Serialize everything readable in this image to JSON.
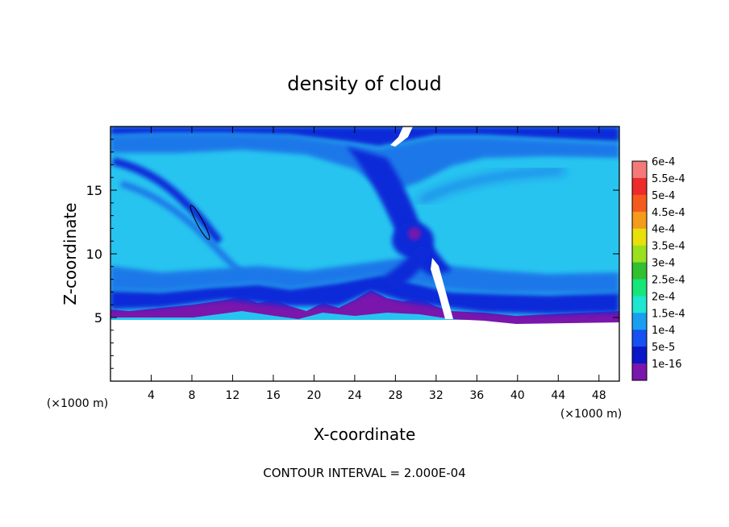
{
  "chart_data": {
    "type": "heatmap",
    "title": "density of cloud",
    "xlabel": "X-coordinate",
    "ylabel": "Z-coordinate",
    "x_unit_left": "(×1000 m)",
    "x_unit_right": "(×1000 m)",
    "footer": "CONTOUR INTERVAL = 2.000E-04",
    "xlim": [
      0,
      50
    ],
    "ylim": [
      0,
      20
    ],
    "x_ticks": [
      4,
      8,
      12,
      16,
      20,
      24,
      28,
      32,
      36,
      40,
      44,
      48
    ],
    "y_ticks": [
      5,
      10,
      15
    ],
    "cloud_base_km": 5,
    "colorbar": {
      "labels": [
        "6e-4",
        "5.5e-4",
        "5e-4",
        "4.5e-4",
        "4e-4",
        "3.5e-4",
        "3e-4",
        "2.5e-4",
        "2e-4",
        "1.5e-4",
        "1e-4",
        "5e-5",
        "1e-16"
      ],
      "colors": [
        "#f47a7a",
        "#ee2a2a",
        "#f45a1e",
        "#f49a1c",
        "#e8e00a",
        "#9be01e",
        "#30c030",
        "#16e67a",
        "#1ee6d0",
        "#1a9ef0",
        "#1650f0",
        "#0a16c8",
        "#7a16ac"
      ]
    },
    "fields": {
      "background": "#28c4f0",
      "cloud_top_layer": "#1a78e8",
      "deep_layer": "#0c2ad8",
      "edge_layer": "#7a16ac"
    }
  }
}
